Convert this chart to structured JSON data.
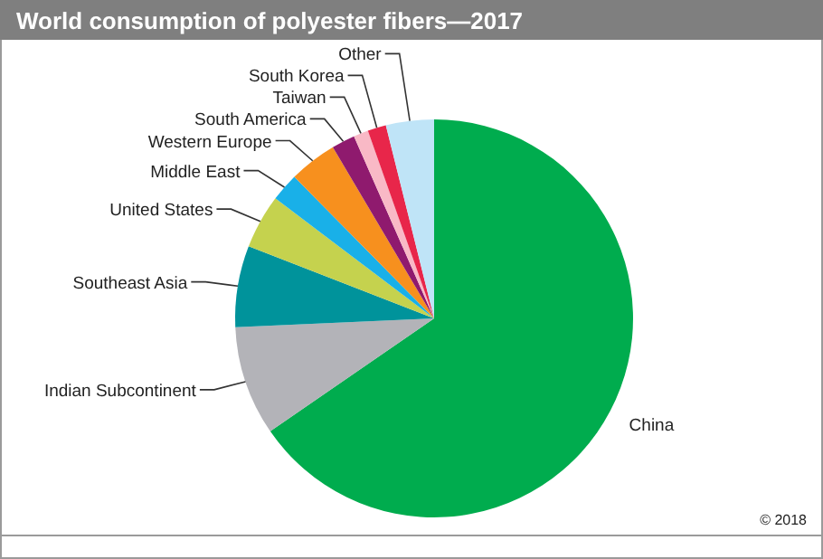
{
  "chart_data": {
    "type": "pie",
    "title": "World consumption of polyester fibers—2017",
    "categories": [
      "China",
      "Indian Subcontinent",
      "Southeast Asia",
      "United States",
      "Middle East",
      "Western Europe",
      "South America",
      "Taiwan",
      "South Korea",
      "Other"
    ],
    "values": [
      65.4,
      8.9,
      6.6,
      4.4,
      2.3,
      3.9,
      1.9,
      1.2,
      1.5,
      3.9
    ],
    "colors": [
      "#00ac4e",
      "#b3b3b8",
      "#00939b",
      "#c5d24e",
      "#19b0e8",
      "#f7901e",
      "#8f1a6e",
      "#f9b9c6",
      "#e8264a",
      "#bfe4f7"
    ],
    "annotations": [
      "© 2018"
    ]
  }
}
